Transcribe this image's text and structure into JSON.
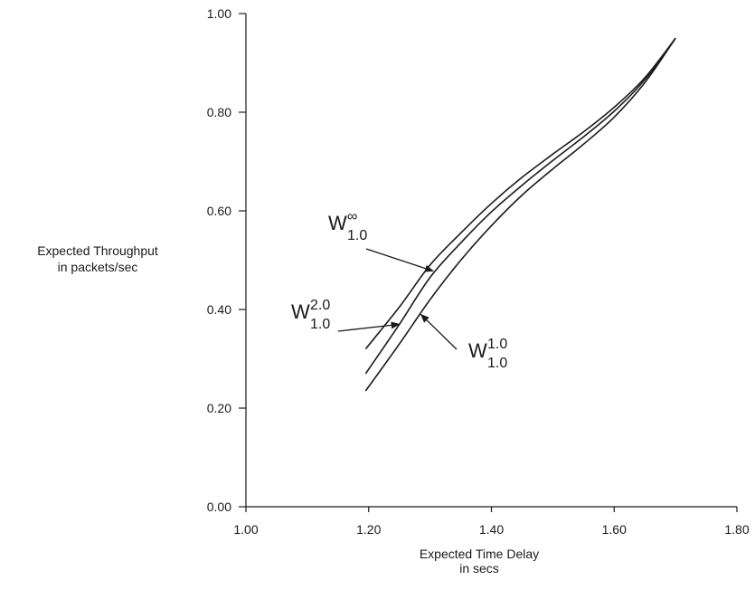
{
  "chart_data": {
    "type": "line",
    "title": "",
    "xlabel": [
      "Expected Time Delay",
      "in secs"
    ],
    "ylabel": [
      "Expected Throughput",
      "in packets/sec"
    ],
    "xlim": [
      1.0,
      1.8
    ],
    "ylim": [
      0.0,
      1.0
    ],
    "xticks": [
      "1.00",
      "1.20",
      "1.40",
      "1.60",
      "1.80"
    ],
    "yticks": [
      "0.00",
      "0.20",
      "0.40",
      "0.60",
      "0.80",
      "1.00"
    ],
    "grid": false,
    "series": [
      {
        "name": "W∞ 1.0",
        "x": [
          1.195,
          1.25,
          1.3,
          1.35,
          1.4,
          1.45,
          1.5,
          1.55,
          1.6,
          1.65,
          1.7
        ],
        "y": [
          0.32,
          0.405,
          0.49,
          0.555,
          0.615,
          0.668,
          0.715,
          0.76,
          0.81,
          0.87,
          0.95
        ]
      },
      {
        "name": "W2.0 1.0",
        "x": [
          1.195,
          1.25,
          1.3,
          1.35,
          1.4,
          1.45,
          1.5,
          1.55,
          1.6,
          1.65,
          1.7
        ],
        "y": [
          0.27,
          0.37,
          0.465,
          0.535,
          0.598,
          0.652,
          0.702,
          0.75,
          0.802,
          0.866,
          0.95
        ]
      },
      {
        "name": "W1.0 1.0",
        "x": [
          1.195,
          1.25,
          1.3,
          1.35,
          1.4,
          1.45,
          1.5,
          1.55,
          1.6,
          1.65,
          1.7
        ],
        "y": [
          0.235,
          0.33,
          0.42,
          0.5,
          0.57,
          0.632,
          0.685,
          0.735,
          0.79,
          0.86,
          0.95
        ]
      }
    ],
    "annotations": [
      {
        "base": "W",
        "sup": "∞",
        "sub": "1.0",
        "points_to_series": 0
      },
      {
        "base": "W",
        "sup": "2.0",
        "sub": "1.0",
        "points_to_series": 1
      },
      {
        "base": "W",
        "sup": "1.0",
        "sub": "1.0",
        "points_to_series": 2
      }
    ]
  }
}
